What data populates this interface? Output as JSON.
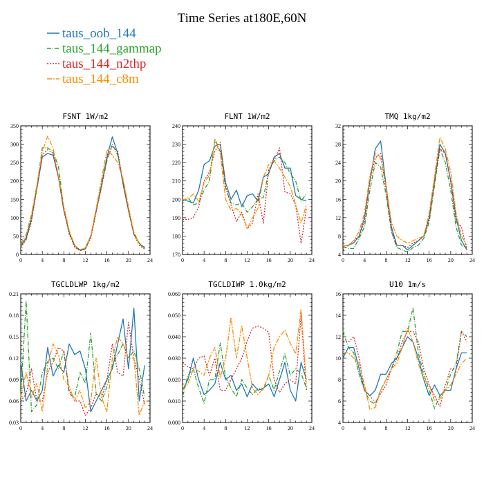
{
  "title": "Time Series at180E,60N",
  "colors": {
    "taus_oob_144": "#1f77b4",
    "taus_144_gammap": "#2ca02c",
    "taus_144_n2thp": "#d62728",
    "taus_144_c8m": "#ff8c00"
  },
  "legend": [
    {
      "name": "taus_oob_144",
      "color": "#1f77b4"
    },
    {
      "name": "taus_144_gammap",
      "color": "#2ca02c"
    },
    {
      "name": "taus_144_n2thp",
      "color": "#d62728"
    },
    {
      "name": "taus_144_c8m",
      "color": "#ff8c00"
    }
  ],
  "chart_data": [
    {
      "type": "line",
      "title": "FSNT  1W/m2",
      "xlim": [
        0,
        24
      ],
      "xticks": [
        "0",
        "4",
        "8",
        "12",
        "16",
        "20",
        "24"
      ],
      "ylim": [
        0,
        350
      ],
      "yticks": [
        "0",
        "50",
        "100",
        "150",
        "200",
        "250",
        "300",
        "350"
      ],
      "x": [
        0,
        1,
        2,
        3,
        4,
        5,
        6,
        7,
        8,
        9,
        10,
        11,
        12,
        13,
        14,
        15,
        16,
        17,
        18,
        19,
        20,
        21,
        22,
        23
      ],
      "series": [
        {
          "name": "taus_oob_144",
          "values": [
            25,
            45,
            100,
            180,
            265,
            275,
            270,
            210,
            120,
            60,
            25,
            12,
            18,
            50,
            120,
            190,
            265,
            320,
            275,
            190,
            120,
            55,
            30,
            18
          ]
        },
        {
          "name": "taus_144_gammap",
          "values": [
            22,
            40,
            95,
            185,
            290,
            290,
            280,
            240,
            125,
            58,
            22,
            10,
            15,
            48,
            118,
            185,
            255,
            300,
            270,
            200,
            120,
            60,
            30,
            20
          ]
        },
        {
          "name": "taus_144_n2thp",
          "values": [
            20,
            40,
            90,
            180,
            270,
            285,
            275,
            210,
            120,
            55,
            20,
            10,
            15,
            45,
            115,
            185,
            260,
            295,
            280,
            195,
            120,
            55,
            25,
            15
          ]
        },
        {
          "name": "taus_144_c8m",
          "values": [
            28,
            55,
            110,
            190,
            280,
            322,
            290,
            215,
            130,
            65,
            25,
            12,
            18,
            50,
            125,
            205,
            285,
            270,
            250,
            205,
            130,
            60,
            28,
            15
          ]
        }
      ]
    },
    {
      "type": "line",
      "title": "FLNT  1W/m2",
      "xlim": [
        0,
        24
      ],
      "xticks": [
        "0",
        "4",
        "8",
        "12",
        "16",
        "20",
        "24"
      ],
      "ylim": [
        170,
        240
      ],
      "yticks": [
        "170",
        "180",
        "190",
        "200",
        "210",
        "220",
        "230",
        "240"
      ],
      "x": [
        0,
        1,
        2,
        3,
        4,
        5,
        6,
        7,
        8,
        9,
        10,
        11,
        12,
        13,
        14,
        15,
        16,
        17,
        18,
        19,
        20,
        21,
        22,
        23
      ],
      "series": [
        {
          "name": "taus_oob_144",
          "values": [
            200,
            199,
            198,
            205,
            219,
            221,
            229,
            230,
            209,
            200,
            205,
            196,
            202,
            203,
            199,
            212,
            214,
            223,
            225,
            217,
            217,
            202,
            200,
            199
          ]
        },
        {
          "name": "taus_144_gammap",
          "values": [
            199,
            201,
            197,
            198,
            205,
            210,
            233,
            226,
            206,
            198,
            197,
            198,
            193,
            196,
            200,
            201,
            215,
            221,
            223,
            220,
            214,
            210,
            199,
            203
          ]
        },
        {
          "name": "taus_144_n2thp",
          "values": [
            189,
            189,
            190,
            196,
            210,
            215,
            226,
            231,
            207,
            197,
            188,
            193,
            184,
            187,
            203,
            187,
            216,
            221,
            228,
            204,
            203,
            197,
            176,
            195
          ]
        },
        {
          "name": "taus_144_c8m",
          "values": [
            200,
            200,
            203,
            199,
            209,
            213,
            232,
            225,
            200,
            194,
            195,
            192,
            184,
            190,
            195,
            212,
            219,
            221,
            217,
            212,
            207,
            197,
            187,
            197
          ]
        }
      ]
    },
    {
      "type": "line",
      "title": "TMQ  1kg/m2",
      "xlim": [
        0,
        24
      ],
      "xticks": [
        "0",
        "4",
        "8",
        "12",
        "16",
        "20",
        "24"
      ],
      "ylim": [
        4,
        32
      ],
      "yticks": [
        "4",
        "8",
        "12",
        "16",
        "20",
        "24",
        "28",
        "32"
      ],
      "x": [
        0,
        1,
        2,
        3,
        4,
        5,
        6,
        7,
        8,
        9,
        10,
        11,
        12,
        13,
        14,
        15,
        16,
        17,
        18,
        19,
        20,
        21,
        22,
        23
      ],
      "series": [
        {
          "name": "taus_oob_144",
          "values": [
            6,
            6,
            6.5,
            8,
            12,
            20,
            27,
            28.7,
            19,
            10,
            6,
            6,
            5,
            6,
            7,
            8,
            12,
            20,
            28,
            26,
            20,
            12,
            7,
            5
          ]
        },
        {
          "name": "taus_144_gammap",
          "values": [
            5.8,
            5.3,
            5.3,
            7.5,
            10,
            18,
            24,
            23,
            17,
            9,
            5.5,
            5,
            4.5,
            5.5,
            6,
            7.5,
            11,
            19,
            27,
            24,
            18,
            10,
            6,
            5.5
          ]
        },
        {
          "name": "taus_144_n2thp",
          "values": [
            5,
            6,
            7,
            8,
            11,
            20,
            25,
            26,
            18,
            9,
            6,
            6,
            5.5,
            6.5,
            7,
            8,
            11.5,
            20,
            27,
            26,
            20,
            11,
            10,
            5
          ]
        },
        {
          "name": "taus_144_c8m",
          "values": [
            6,
            6,
            7,
            9,
            13,
            21,
            26,
            25,
            19,
            11,
            8,
            7,
            6.5,
            7,
            7.5,
            8,
            13,
            21,
            29.5,
            27,
            22,
            13,
            8,
            6
          ]
        }
      ]
    },
    {
      "type": "line",
      "title": "TGCLDLWP  1kg/m2",
      "xlim": [
        0,
        24
      ],
      "xticks": [
        "0",
        "4",
        "8",
        "12",
        "16",
        "20",
        "24"
      ],
      "ylim": [
        0.03,
        0.21
      ],
      "yticks": [
        "0.03",
        "0.06",
        "0.09",
        "0.12",
        "0.15",
        "0.18",
        "0.21"
      ],
      "x": [
        0,
        1,
        2,
        3,
        4,
        5,
        6,
        7,
        8,
        9,
        10,
        11,
        12,
        13,
        14,
        15,
        16,
        17,
        18,
        19,
        20,
        21,
        22,
        23
      ],
      "series": [
        {
          "name": "taus_oob_144",
          "values": [
            0.115,
            0.06,
            0.075,
            0.06,
            0.075,
            0.135,
            0.095,
            0.11,
            0.1,
            0.14,
            0.125,
            0.13,
            0.105,
            0.045,
            0.06,
            0.075,
            0.09,
            0.105,
            0.14,
            0.175,
            0.105,
            0.19,
            0.06,
            0.11
          ]
        },
        {
          "name": "taus_144_gammap",
          "values": [
            0.065,
            0.2,
            0.045,
            0.055,
            0.1,
            0.115,
            0.12,
            0.105,
            0.13,
            0.07,
            0.065,
            0.1,
            0.085,
            0.155,
            0.07,
            0.06,
            0.08,
            0.11,
            0.125,
            0.14,
            0.12,
            0.13,
            0.105,
            0.065
          ]
        },
        {
          "name": "taus_144_n2thp",
          "values": [
            0.06,
            0.07,
            0.105,
            0.06,
            0.06,
            0.1,
            0.115,
            0.135,
            0.13,
            0.075,
            0.06,
            0.06,
            0.04,
            0.05,
            0.07,
            0.065,
            0.09,
            0.14,
            0.1,
            0.095,
            0.17,
            0.12,
            0.09,
            0.055
          ]
        },
        {
          "name": "taus_144_c8m",
          "values": [
            0.065,
            0.1,
            0.065,
            0.085,
            0.045,
            0.11,
            0.14,
            0.125,
            0.09,
            0.08,
            0.06,
            0.075,
            0.05,
            0.06,
            0.12,
            0.065,
            0.045,
            0.12,
            0.15,
            0.14,
            0.12,
            0.12,
            0.04,
            0.06
          ]
        }
      ]
    },
    {
      "type": "line",
      "title": "TGCLDIWP  1.0kg/m2",
      "xlim": [
        0,
        24
      ],
      "xticks": [
        "0",
        "4",
        "8",
        "12",
        "16",
        "20",
        "24"
      ],
      "ylim": [
        0,
        0.06
      ],
      "yticks": [
        "0.000",
        "0.010",
        "0.020",
        "0.030",
        "0.040",
        "0.050",
        "0.060"
      ],
      "x": [
        0,
        1,
        2,
        3,
        4,
        5,
        6,
        7,
        8,
        9,
        10,
        11,
        12,
        13,
        14,
        15,
        16,
        17,
        18,
        19,
        20,
        21,
        22,
        23
      ],
      "series": [
        {
          "name": "taus_oob_144",
          "values": [
            0.015,
            0.02,
            0.03,
            0.02,
            0.013,
            0.015,
            0.018,
            0.028,
            0.02,
            0.022,
            0.015,
            0.018,
            0.012,
            0.018,
            0.015,
            0.016,
            0.018,
            0.012,
            0.02,
            0.028,
            0.015,
            0.01,
            0.028,
            0.02
          ]
        },
        {
          "name": "taus_144_gammap",
          "values": [
            0.012,
            0.022,
            0.025,
            0.016,
            0.009,
            0.02,
            0.02,
            0.037,
            0.021,
            0.016,
            0.012,
            0.02,
            0.016,
            0.013,
            0.016,
            0.015,
            0.022,
            0.015,
            0.024,
            0.032,
            0.022,
            0.025,
            0.023,
            0.016
          ]
        },
        {
          "name": "taus_144_n2thp",
          "values": [
            0.028,
            0.026,
            0.025,
            0.03,
            0.031,
            0.022,
            0.03,
            0.015,
            0.015,
            0.02,
            0.025,
            0.03,
            0.038,
            0.044,
            0.045,
            0.044,
            0.042,
            0.02,
            0.014,
            0.018,
            0.02,
            0.018,
            0.05,
            0.015
          ]
        },
        {
          "name": "taus_144_c8m",
          "values": [
            0.015,
            0.018,
            0.025,
            0.024,
            0.022,
            0.03,
            0.035,
            0.021,
            0.03,
            0.049,
            0.03,
            0.045,
            0.03,
            0.016,
            0.013,
            0.016,
            0.022,
            0.035,
            0.04,
            0.043,
            0.037,
            0.032,
            0.053,
            0.018
          ]
        }
      ]
    },
    {
      "type": "line",
      "title": "U10  1m/s",
      "xlim": [
        0,
        24
      ],
      "xticks": [
        "0",
        "4",
        "8",
        "12",
        "16",
        "20",
        "24"
      ],
      "ylim": [
        4,
        16
      ],
      "yticks": [
        "4",
        "6",
        "8",
        "10",
        "12",
        "14",
        "16"
      ],
      "x": [
        0,
        1,
        2,
        3,
        4,
        5,
        6,
        7,
        8,
        9,
        10,
        11,
        12,
        13,
        14,
        15,
        16,
        17,
        18,
        19,
        20,
        21,
        22,
        23
      ],
      "series": [
        {
          "name": "taus_oob_144",
          "values": [
            10,
            11,
            11,
            9,
            7,
            6.5,
            7,
            8.5,
            8.5,
            9.5,
            10,
            11,
            12,
            11.5,
            10,
            8,
            6.5,
            7.5,
            6.5,
            7,
            7,
            9,
            10.5,
            10.5
          ]
        },
        {
          "name": "taus_144_gammap",
          "values": [
            12.5,
            11,
            10.5,
            8.5,
            7,
            6,
            5.7,
            7,
            8,
            9,
            10.5,
            12.5,
            12.5,
            14.7,
            10.5,
            8.5,
            7,
            5.3,
            6.5,
            7,
            8.5,
            9.5,
            12.5,
            12
          ]
        },
        {
          "name": "taus_144_n2thp",
          "values": [
            11.5,
            11.5,
            12,
            10,
            7,
            6.5,
            5.8,
            6.7,
            7.5,
            9,
            10,
            11.5,
            12.5,
            12.5,
            11.5,
            9,
            7.5,
            6.5,
            5.5,
            7.5,
            9,
            9,
            12.5,
            11.5
          ]
        },
        {
          "name": "taus_144_c8m",
          "values": [
            10.5,
            10.5,
            10,
            9.5,
            7.5,
            5.2,
            5.4,
            7,
            8,
            9,
            9.5,
            11,
            12.8,
            11.5,
            9.5,
            8,
            7.5,
            6,
            6.2,
            7,
            7.5,
            8.5,
            9.5,
            10
          ]
        }
      ]
    }
  ]
}
